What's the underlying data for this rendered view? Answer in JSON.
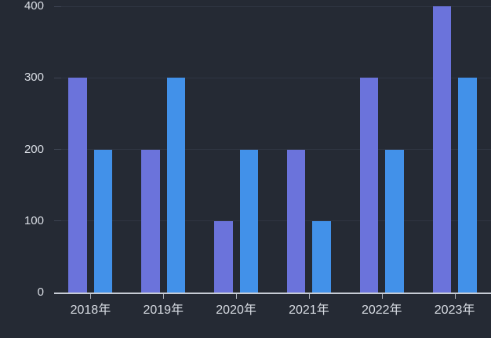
{
  "chart": {
    "background_color": "#252a34",
    "gridline_color": "#2f3542",
    "axis_line_color": "#c7ccd5",
    "axis_label_color": "#d9dde4",
    "grid": true,
    "legend": false
  },
  "chart_data": {
    "type": "bar",
    "title": "",
    "xlabel": "",
    "ylabel": "",
    "categories": [
      "2018年",
      "2019年",
      "2020年",
      "2021年",
      "2022年",
      "2023年"
    ],
    "series": [
      {
        "name": "purple-series",
        "color": "#6b73db",
        "values": [
          300,
          200,
          100,
          200,
          300,
          400
        ]
      },
      {
        "name": "blue-series",
        "color": "#4291e9",
        "values": [
          200,
          300,
          200,
          100,
          200,
          300
        ]
      }
    ],
    "ylim": [
      0,
      400
    ],
    "yticks": [
      0,
      100,
      200,
      300,
      400
    ],
    "legend_position": "none"
  }
}
